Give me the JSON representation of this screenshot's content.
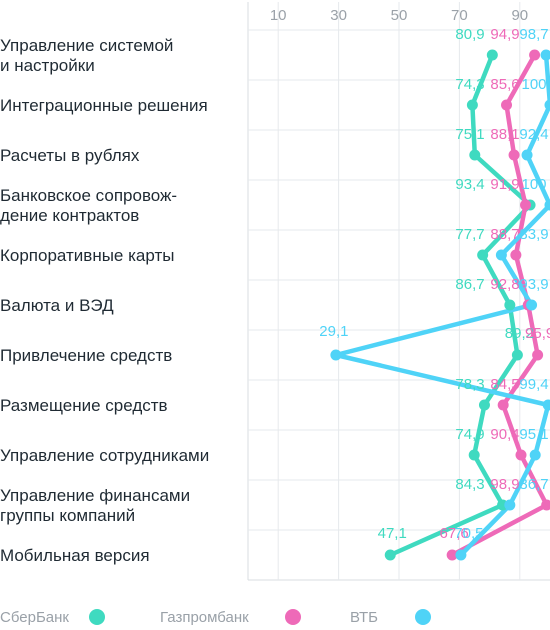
{
  "chart_data": {
    "type": "line",
    "xlim": [
      0,
      100
    ],
    "xticks": [
      "10",
      "30",
      "50",
      "70",
      "90"
    ],
    "xtick_values": [
      10,
      30,
      50,
      70,
      90
    ],
    "categories": [
      [
        "Управление системой",
        "и настройки"
      ],
      [
        "Интеграционные решения"
      ],
      [
        "Расчеты в рублях"
      ],
      [
        "Банковское сопровож-",
        "дение контрактов"
      ],
      [
        "Корпоративные карты"
      ],
      [
        "Валюта и ВЭД"
      ],
      [
        "Привлечение средств"
      ],
      [
        "Размещение средств"
      ],
      [
        "Управление сотрудниками"
      ],
      [
        "Управление финансами",
        "группы компаний"
      ],
      [
        "Мобильная версия"
      ]
    ],
    "series": [
      {
        "name": "СберБанк",
        "color": "#3fdac0",
        "values": [
          80.9,
          74.3,
          75.1,
          93.4,
          77.7,
          86.7,
          89.2,
          78.3,
          74.9,
          84.3,
          47.1
        ],
        "labels": [
          "80,9",
          "74,3",
          "75,1",
          "93,4",
          "77,7",
          "86,7",
          "89,2",
          "78,3",
          "74,9",
          "84,3",
          "47,1"
        ]
      },
      {
        "name": "Газпромбанк",
        "color": "#ee6ab8",
        "values": [
          94.9,
          85.6,
          88.1,
          91.9,
          88.7,
          92.8,
          95.9,
          84.5,
          90.4,
          98.9,
          67.6
        ],
        "labels": [
          "94,9",
          "85,6",
          "88,1",
          "91,9",
          "88,7",
          "92,8",
          "95,9",
          "84,5",
          "90,4",
          "98,9",
          "67,6"
        ]
      },
      {
        "name": "ВТБ",
        "color": "#4fd3f7",
        "values": [
          98.7,
          100,
          92.4,
          100,
          83.9,
          93.9,
          29.1,
          99.4,
          95.1,
          86.7,
          70.5
        ],
        "labels": [
          "98,7",
          "100",
          "92,4",
          "100",
          "83,9",
          "93,9",
          "29,1",
          "99,4",
          "95,1",
          "86,7",
          "70,5"
        ]
      }
    ],
    "legend": "bottom",
    "grid": true
  }
}
